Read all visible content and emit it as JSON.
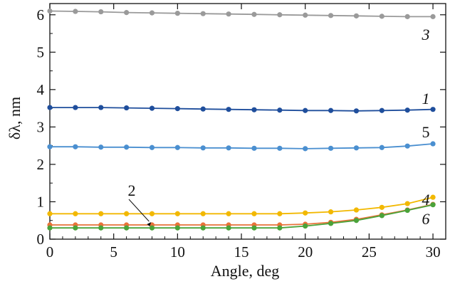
{
  "chart_data": {
    "type": "line",
    "title": "",
    "xlabel": "Angle, deg",
    "ylabel": "δλ, nm",
    "xlim": [
      0,
      31
    ],
    "ylim": [
      0,
      6.3
    ],
    "xticks": [
      0,
      5,
      10,
      15,
      20,
      25,
      30
    ],
    "yticks": [
      0,
      1,
      2,
      3,
      4,
      5,
      6
    ],
    "grid": false,
    "legend": "none",
    "x": [
      0,
      2,
      4,
      6,
      8,
      10,
      12,
      14,
      16,
      18,
      20,
      22,
      24,
      26,
      28,
      30
    ],
    "series": [
      {
        "label": "3",
        "color": "#9a9a9a",
        "values": [
          6.1,
          6.09,
          6.08,
          6.06,
          6.05,
          6.04,
          6.03,
          6.02,
          6.01,
          6.0,
          5.99,
          5.98,
          5.97,
          5.96,
          5.95,
          5.95
        ]
      },
      {
        "label": "1",
        "color": "#1f4e9c",
        "values": [
          3.52,
          3.52,
          3.52,
          3.51,
          3.5,
          3.49,
          3.48,
          3.47,
          3.46,
          3.45,
          3.44,
          3.44,
          3.43,
          3.44,
          3.45,
          3.47
        ]
      },
      {
        "label": "5",
        "color": "#4a8fd0",
        "values": [
          2.47,
          2.47,
          2.46,
          2.46,
          2.45,
          2.45,
          2.44,
          2.44,
          2.43,
          2.43,
          2.42,
          2.43,
          2.44,
          2.45,
          2.49,
          2.55
        ]
      },
      {
        "label": "4",
        "color": "#f2b800",
        "values": [
          0.68,
          0.68,
          0.68,
          0.68,
          0.68,
          0.68,
          0.68,
          0.68,
          0.68,
          0.68,
          0.7,
          0.73,
          0.78,
          0.85,
          0.95,
          1.12
        ]
      },
      {
        "label": "2",
        "color": "#e8733a",
        "values": [
          0.38,
          0.38,
          0.38,
          0.38,
          0.38,
          0.38,
          0.38,
          0.38,
          0.38,
          0.38,
          0.4,
          0.45,
          0.53,
          0.65,
          0.78,
          0.93
        ]
      },
      {
        "label": "6",
        "color": "#4aa33a",
        "values": [
          0.3,
          0.3,
          0.3,
          0.3,
          0.3,
          0.3,
          0.3,
          0.3,
          0.3,
          0.3,
          0.35,
          0.42,
          0.5,
          0.63,
          0.77,
          0.92
        ]
      }
    ]
  }
}
